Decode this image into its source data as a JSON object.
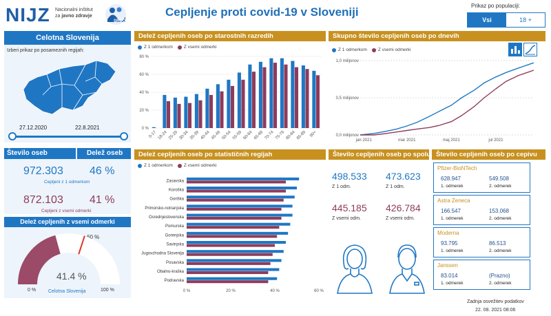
{
  "logo": {
    "name": "NIJZ",
    "line1": "Nacionalni inštitut",
    "line2_prefix": "za",
    "line2_bold": "javno zdravje",
    "badge": "SRCO"
  },
  "title": "Cepljenje proti covid-19 v Sloveniji",
  "population": {
    "label": "Prikaz po populaciji:",
    "options": [
      "Vsi",
      "18 +"
    ],
    "selected": "Vsi"
  },
  "region_panel": {
    "title": "Celotna Slovenija",
    "subtitle": "Izberi prikaz po posameznih regijah:",
    "date_start": "27.12.2020",
    "date_end": "22.8.2021"
  },
  "kpi": {
    "h_count": "Število oseb",
    "h_share": "Delež oseb",
    "dose1_count": "972.303",
    "dose1_share": "46 %",
    "dose1_label": "Cepljeni z 1 odmerkom",
    "all_count": "872.103",
    "all_share": "41 %",
    "all_label": "Cepljeni z vsemi odmerki"
  },
  "gauge": {
    "title": "Delež cepljenih z vsemi odmerki",
    "value_label": "41.4 %",
    "target_label": "60 %",
    "min_label": "0 %",
    "max_label": "100 %",
    "caption": "Celotna Slovenija",
    "value": 41.4,
    "target": 60
  },
  "legend": {
    "dose1": "Z 1 odmerkom",
    "all": "Z vsemi odmerki"
  },
  "age_chart": {
    "title": "Delež cepljenih oseb po starostnih razredih"
  },
  "daily_chart": {
    "title": "Skupno število cepljenih oseb po dnevih"
  },
  "region_chart": {
    "title": "Delež cepljenih oseb po statističnih regijah"
  },
  "sex_panel": {
    "title": "Število cepljenih oseb po spolu",
    "f_dose1": "498.533",
    "m_dose1": "473.623",
    "dose1_label": "Z 1 odm.",
    "f_all": "445.185",
    "m_all": "426.784",
    "all_label": "Z vsemi odm."
  },
  "vaccine_panel": {
    "title": "Število cepljenih oseb po cepivu",
    "dose1_label": "1. odmerek",
    "dose2_label": "2. odmerek",
    "vaccines": [
      {
        "name": "Pfizer-BioNTech",
        "dose1": "628.947",
        "dose2": "549.508"
      },
      {
        "name": "Astra Zeneca",
        "dose1": "166.547",
        "dose2": "153.068"
      },
      {
        "name": "Moderna",
        "dose1": "93.795",
        "dose2": "86.513"
      },
      {
        "name": "Janssen",
        "dose1": "83.014",
        "dose2": "(Prazno)"
      }
    ]
  },
  "footer": {
    "label": "Zadnja osvežitev podatkov",
    "date": "22. 08. 2021 08:06"
  },
  "colors": {
    "accent_blue": "#1f77c4",
    "accent_purple": "#8e3b5b",
    "header_gold": "#c8911f"
  },
  "icons": [
    "bar-chart-icon",
    "line-chart-icon",
    "woman-icon",
    "man-icon"
  ],
  "chart_data": [
    {
      "type": "bar",
      "title": "Delež cepljenih oseb po starostnih razredih",
      "categories": [
        "0-17",
        "18-24",
        "25-29",
        "30-34",
        "35-39",
        "40-44",
        "45-49",
        "50-54",
        "55-59",
        "60-64",
        "65-69",
        "70-74",
        "75-79",
        "80-84",
        "85-89",
        "90+"
      ],
      "series": [
        {
          "name": "Z 1 odmerkom",
          "values": [
            1,
            37,
            34,
            35,
            38,
            44,
            49,
            54,
            62,
            71,
            74,
            78,
            78,
            75,
            70,
            64
          ]
        },
        {
          "name": "Z vsemi odmerki",
          "values": [
            0,
            30,
            27,
            28,
            31,
            37,
            41,
            47,
            54,
            63,
            68,
            73,
            71,
            68,
            66,
            59
          ]
        }
      ],
      "yticks": [
        "0 %",
        "20 %",
        "40 %",
        "60 %",
        "80 %"
      ],
      "ylim": [
        0,
        80
      ]
    },
    {
      "type": "line",
      "title": "Skupno število cepljenih oseb po dnevih",
      "x": [
        "2020-12-27",
        "2021-01-15",
        "2021-02-01",
        "2021-02-15",
        "2021-03-01",
        "2021-03-15",
        "2021-04-01",
        "2021-04-15",
        "2021-05-01",
        "2021-05-15",
        "2021-06-01",
        "2021-06-15",
        "2021-07-01",
        "2021-07-15",
        "2021-08-01",
        "2021-08-22"
      ],
      "series": [
        {
          "name": "Z 1 odmerkom",
          "values": [
            0,
            0.02,
            0.05,
            0.08,
            0.12,
            0.17,
            0.25,
            0.32,
            0.4,
            0.5,
            0.6,
            0.7,
            0.78,
            0.84,
            0.9,
            0.97
          ]
        },
        {
          "name": "Z vsemi odmerki",
          "values": [
            0,
            0,
            0.02,
            0.04,
            0.06,
            0.08,
            0.1,
            0.13,
            0.18,
            0.26,
            0.38,
            0.5,
            0.62,
            0.72,
            0.8,
            0.87
          ]
        }
      ],
      "xticks": [
        "jan 2021",
        "mar 2021",
        "maj 2021",
        "jul 2021"
      ],
      "yticks": [
        "0,0 milijonov",
        "0,5 milijonov",
        "1,0 milijonov"
      ],
      "ylim": [
        0,
        1.0
      ]
    },
    {
      "type": "bar",
      "title": "Delež cepljenih oseb po statističnih regijah",
      "categories": [
        "Zasavska",
        "Koroška",
        "Goriška",
        "Primorsko-notranjska",
        "Osrednjeslovenska",
        "Pomurska",
        "Gorenjska",
        "Savinjska",
        "Jugovzhodna Slovenija",
        "Posavska",
        "Obalno-kraška",
        "Podravska"
      ],
      "series": [
        {
          "name": "Z 1 odmerkom",
          "values": [
            51,
            50,
            49,
            48,
            48,
            47,
            46,
            45,
            44,
            43,
            42,
            41
          ]
        },
        {
          "name": "Z vsemi odmerki",
          "values": [
            45,
            45,
            44,
            43,
            43,
            42,
            41,
            40,
            39,
            38,
            37,
            37
          ]
        }
      ],
      "xticks": [
        "0 %",
        "20 %",
        "40 %",
        "60 %"
      ],
      "xlim": [
        0,
        60
      ]
    }
  ]
}
